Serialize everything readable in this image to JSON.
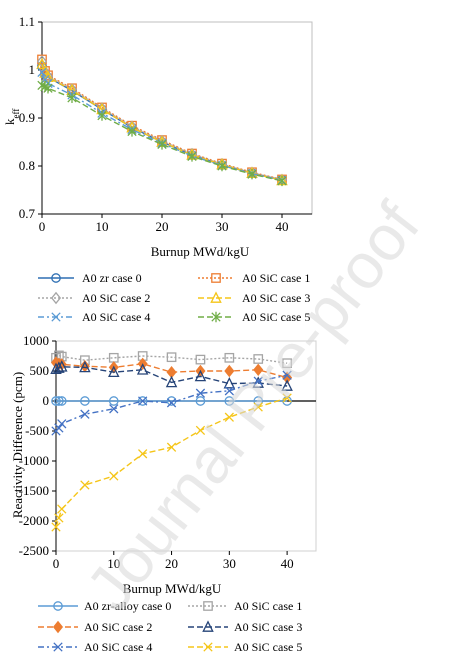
{
  "watermark": "Journal Pre-proof",
  "chart_data": [
    {
      "type": "line",
      "title": "",
      "xlabel": "Burnup MWd/kgU",
      "ylabel": "k",
      "ylabel_sub": "eff",
      "xlim": [
        0,
        45
      ],
      "ylim": [
        0.7,
        1.1
      ],
      "xticks": [
        0,
        10,
        20,
        30,
        40
      ],
      "yticks": [
        0.7,
        0.8,
        0.9,
        1,
        1.1
      ],
      "ytick_labels": [
        "0.7",
        "0.8",
        "0.9",
        "1",
        "1.1"
      ],
      "grid": false,
      "legend_position": "bottom",
      "x": [
        0,
        0.5,
        1,
        5,
        10,
        15,
        20,
        25,
        30,
        35,
        40
      ],
      "series": [
        {
          "name": "A0 zr case 0",
          "color": "#2e6fb3",
          "marker": "circle",
          "dash": "solid",
          "values": [
            1.008,
            0.993,
            0.985,
            0.957,
            0.918,
            0.88,
            0.85,
            0.823,
            0.802,
            0.785,
            0.771
          ]
        },
        {
          "name": "A0 SiC case 1",
          "color": "#ed7d31",
          "marker": "square",
          "dash": "dot",
          "values": [
            1.022,
            0.998,
            0.989,
            0.962,
            0.922,
            0.884,
            0.854,
            0.826,
            0.805,
            0.787,
            0.772
          ]
        },
        {
          "name": "A0 SiC case 2",
          "color": "#a5a5a5",
          "marker": "diamond",
          "dash": "dot",
          "values": [
            1.018,
            0.996,
            0.987,
            0.96,
            0.92,
            0.882,
            0.852,
            0.825,
            0.804,
            0.786,
            0.771
          ]
        },
        {
          "name": "A0 SiC case 3",
          "color": "#f5c518",
          "marker": "triangle",
          "dash": "dash",
          "values": [
            1.012,
            0.994,
            0.985,
            0.958,
            0.918,
            0.88,
            0.85,
            0.823,
            0.803,
            0.785,
            0.77
          ]
        },
        {
          "name": "A0 SiC case 4",
          "color": "#5b9bd5",
          "marker": "x",
          "dash": "dashdot",
          "values": [
            0.995,
            0.98,
            0.972,
            0.948,
            0.91,
            0.876,
            0.847,
            0.821,
            0.801,
            0.784,
            0.77
          ]
        },
        {
          "name": "A0 SiC case 5",
          "color": "#70ad47",
          "marker": "star",
          "dash": "dash",
          "values": [
            0.968,
            0.965,
            0.962,
            0.942,
            0.905,
            0.872,
            0.845,
            0.82,
            0.8,
            0.783,
            0.769
          ]
        }
      ]
    },
    {
      "type": "line",
      "title": "",
      "xlabel": "Burnup MWd/kgU",
      "ylabel": "Reactivity Difference (pcm)",
      "xlim": [
        0,
        45
      ],
      "ylim": [
        -2500,
        1000
      ],
      "xticks": [
        0,
        10,
        20,
        30,
        40
      ],
      "yticks": [
        -2500,
        -2000,
        -1500,
        -1000,
        -500,
        0,
        500,
        1000
      ],
      "ytick_labels": [
        "-2500",
        "-2000",
        "-1500",
        "-1000",
        "-500",
        "0",
        "500",
        "1000"
      ],
      "grid": false,
      "legend_position": "bottom",
      "x": [
        0,
        0.5,
        1,
        5,
        10,
        15,
        20,
        25,
        30,
        35,
        40
      ],
      "series": [
        {
          "name": "A0 zr-alloy case 0",
          "color": "#5b9bd5",
          "marker": "circle",
          "dash": "solid",
          "values": [
            0,
            0,
            0,
            0,
            0,
            0,
            0,
            0,
            0,
            0,
            0
          ]
        },
        {
          "name": "A0 SiC case 1",
          "color": "#a5a5a5",
          "marker": "square",
          "dash": "dot",
          "values": [
            720,
            760,
            740,
            680,
            720,
            750,
            730,
            690,
            720,
            700,
            630
          ]
        },
        {
          "name": "A0 SiC case 2",
          "color": "#ed7d31",
          "marker": "diamond",
          "dash": "dash",
          "values": [
            640,
            620,
            610,
            580,
            560,
            620,
            480,
            500,
            500,
            520,
            390
          ]
        },
        {
          "name": "A0 SiC case 3",
          "color": "#264478",
          "marker": "triangle",
          "dash": "dash",
          "values": [
            530,
            550,
            570,
            560,
            480,
            520,
            310,
            410,
            290,
            300,
            250
          ]
        },
        {
          "name": "A0 SiC case 4",
          "color": "#4472c4",
          "marker": "x",
          "dash": "dashdot",
          "values": [
            -500,
            -450,
            -380,
            -220,
            -130,
            0,
            -30,
            130,
            170,
            330,
            430
          ]
        },
        {
          "name": "A0 SiC case 5",
          "color": "#f5c518",
          "marker": "x",
          "dash": "dash",
          "values": [
            -2100,
            -1950,
            -1800,
            -1400,
            -1250,
            -880,
            -770,
            -490,
            -270,
            -100,
            50
          ]
        }
      ]
    }
  ]
}
